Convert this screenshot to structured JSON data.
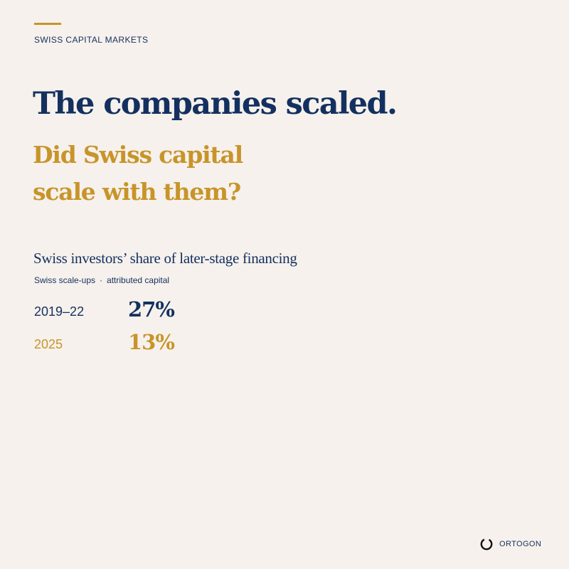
{
  "eyebrow": "SWISS CAPITAL MARKETS",
  "headline": "The companies scaled.",
  "subheadline": {
    "line1": "Did Swiss capital",
    "line2": "scale with them?"
  },
  "stat": {
    "title": "Swiss investors’ share of later-stage financing",
    "subtitle_left": "Swiss scale-ups",
    "separator": "·",
    "subtitle_right": "attributed capital",
    "rows": [
      {
        "period": "2019–22",
        "value": "27%",
        "share": 0.27,
        "color": "#13305f"
      },
      {
        "period": "2025",
        "value": "13%",
        "share": 0.13,
        "color": "#c8942a"
      }
    ]
  },
  "brand": {
    "name": "ORTOGON",
    "icon": "ring-logo-icon"
  },
  "colors": {
    "background": "#f6f1ec",
    "navy": "#13305f",
    "gold": "#c8942a"
  }
}
